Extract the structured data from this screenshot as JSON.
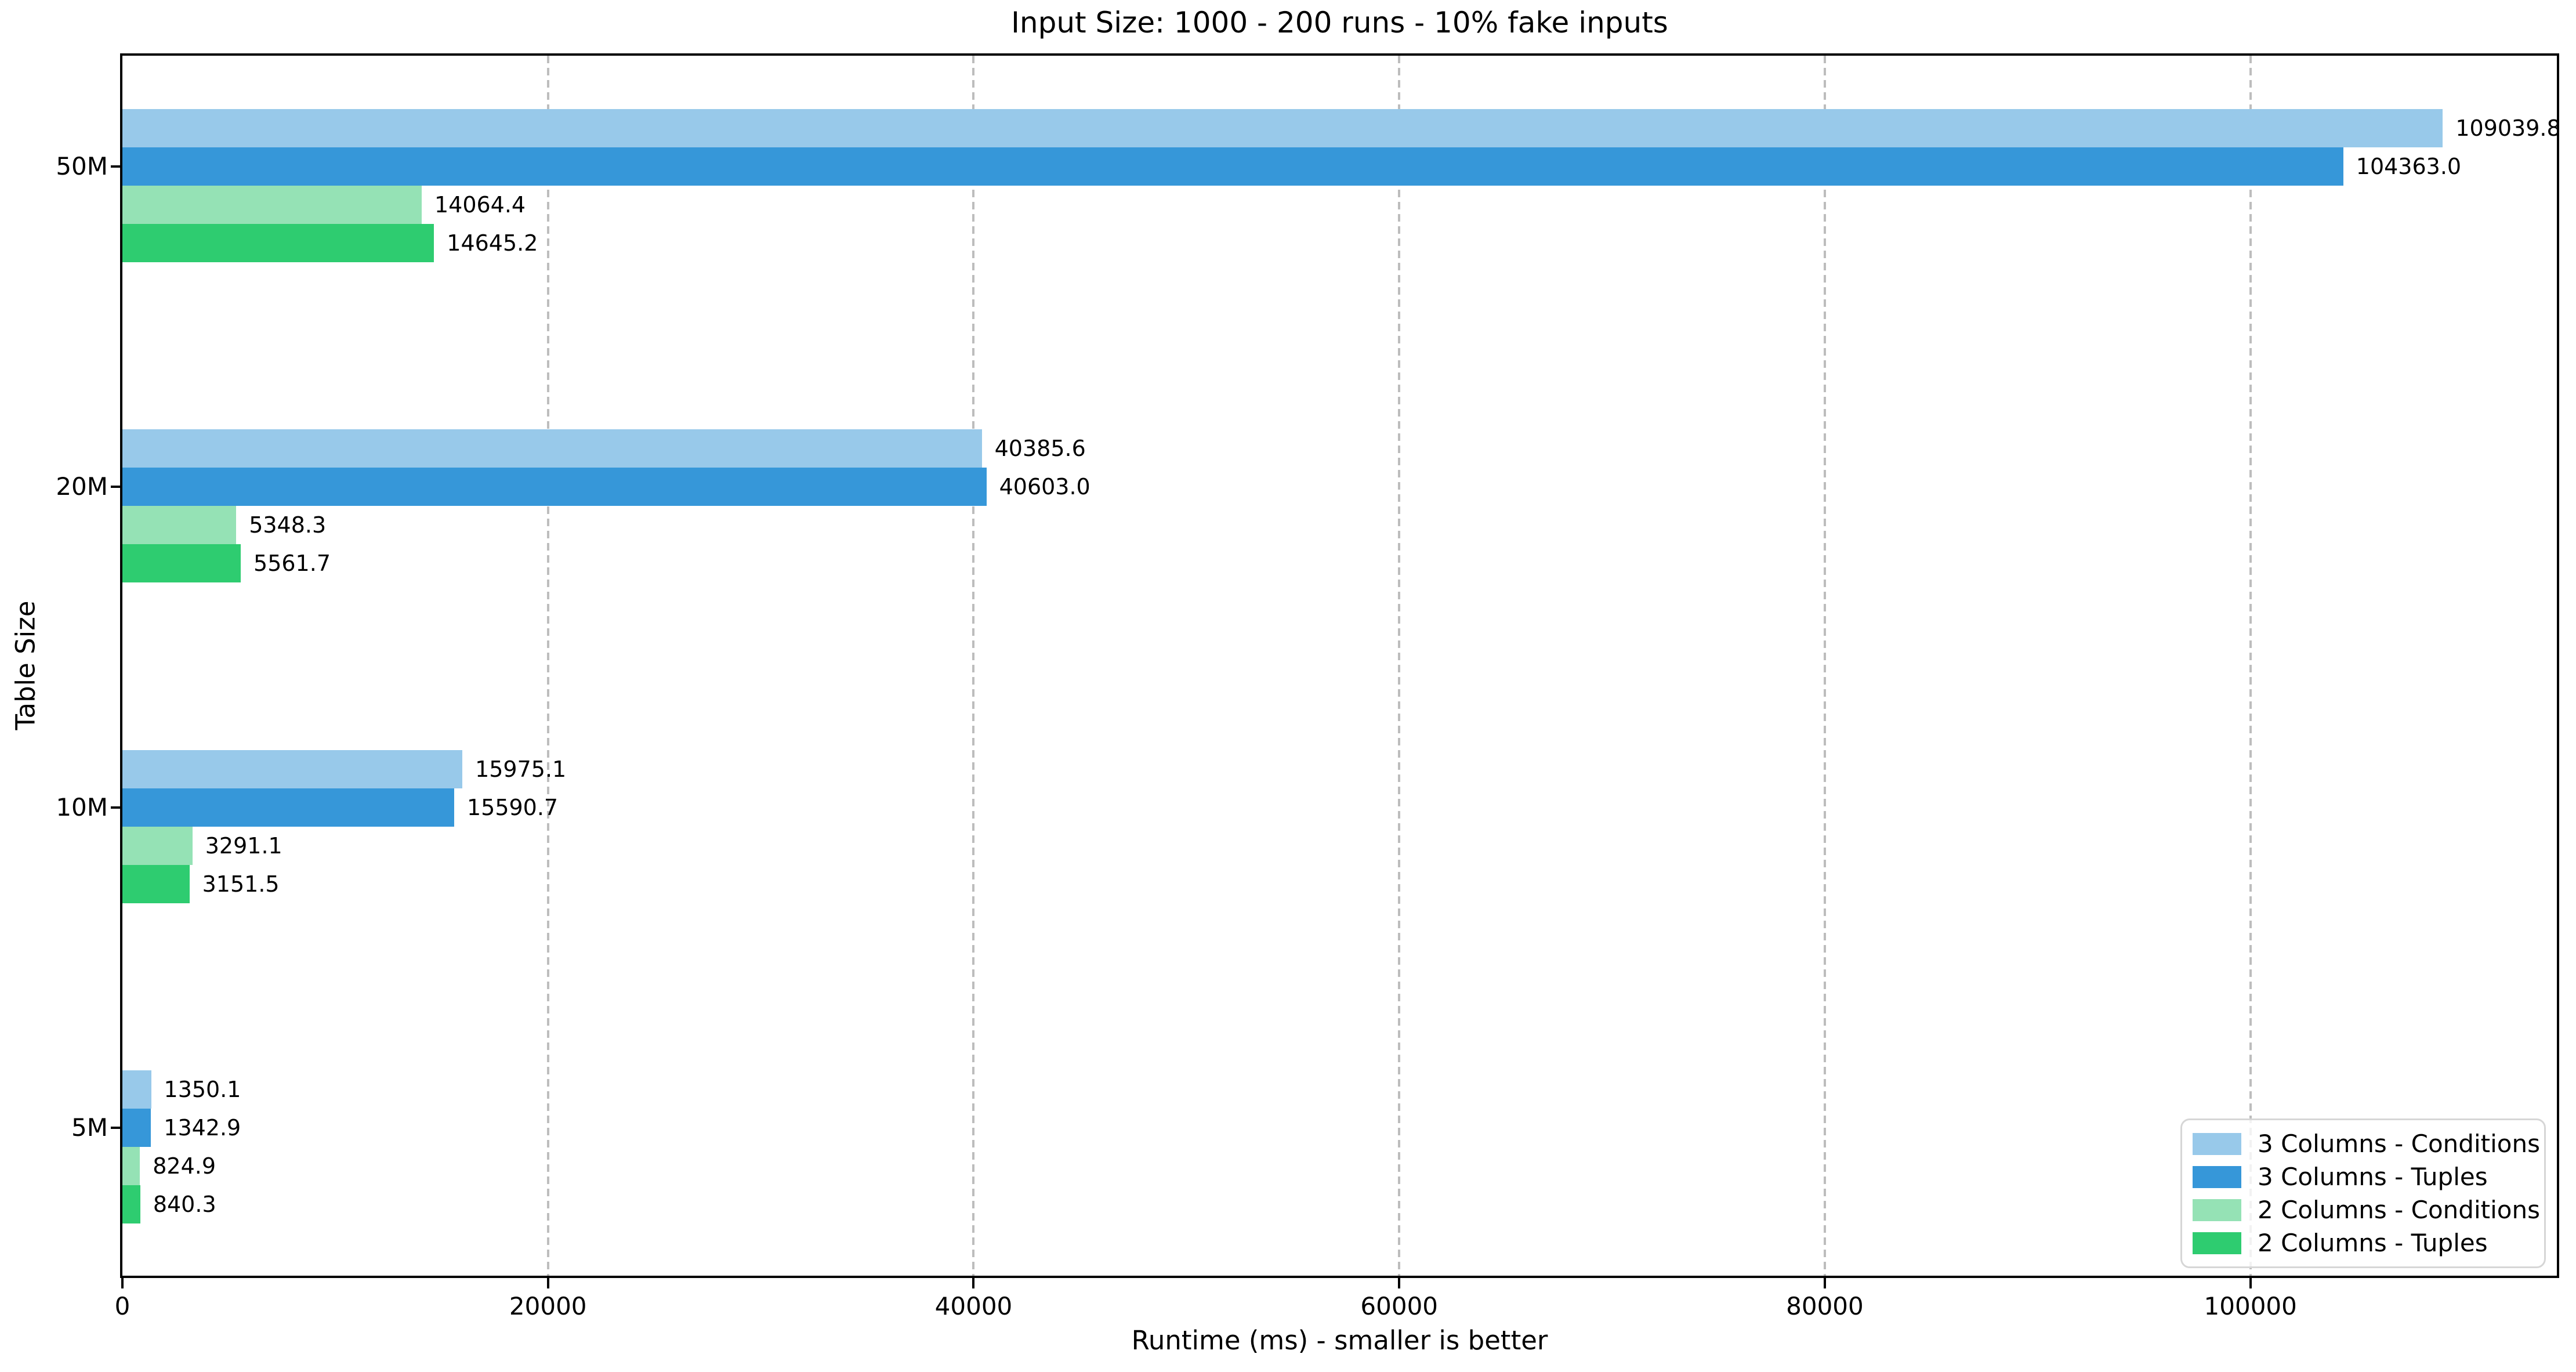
{
  "chart_data": {
    "type": "bar",
    "orientation": "horizontal",
    "title": "Input Size: 1000 - 200 runs - 10% fake inputs",
    "xlabel": "Runtime (ms) - smaller is better",
    "ylabel": "Table Size",
    "categories": [
      "50M",
      "20M",
      "10M",
      "5M"
    ],
    "series": [
      {
        "name": "3 Columns - Conditions",
        "color": "#98c9ea",
        "values": [
          109039.8,
          40385.6,
          15975.1,
          1350.1
        ]
      },
      {
        "name": "3 Columns - Tuples",
        "color": "#3697d9",
        "values": [
          104363.0,
          40603.0,
          15590.7,
          1342.9
        ]
      },
      {
        "name": "2 Columns - Conditions",
        "color": "#95e2b5",
        "values": [
          14064.4,
          5348.3,
          3291.1,
          824.9
        ]
      },
      {
        "name": "2 Columns - Tuples",
        "color": "#2ecc70",
        "values": [
          14645.2,
          5561.7,
          3151.5,
          840.3
        ]
      }
    ],
    "value_labels": [
      [
        "109039.8",
        "40385.6",
        "15975.1",
        "1350.1"
      ],
      [
        "104363.0",
        "40603.0",
        "15590.7",
        "1342.9"
      ],
      [
        "14064.4",
        "5348.3",
        "3291.1",
        "824.9"
      ],
      [
        "14645.2",
        "5561.7",
        "3151.5",
        "840.3"
      ]
    ],
    "xlim": [
      0,
      114400
    ],
    "xticks": [
      0,
      20000,
      40000,
      60000,
      80000,
      100000
    ],
    "xtick_labels": [
      "0",
      "20000",
      "40000",
      "60000",
      "80000",
      "100000"
    ],
    "grid": "vertical dashed gridlines at x ticks",
    "legend_position": "lower right",
    "value_label_format": "one decimal place at end of each bar"
  },
  "style_colors": {
    "grid_color": "#bdbdbd",
    "axis_color": "#000000",
    "text_color": "#000000",
    "legend_border": "#d6d6d6",
    "background": "#ffffff"
  }
}
